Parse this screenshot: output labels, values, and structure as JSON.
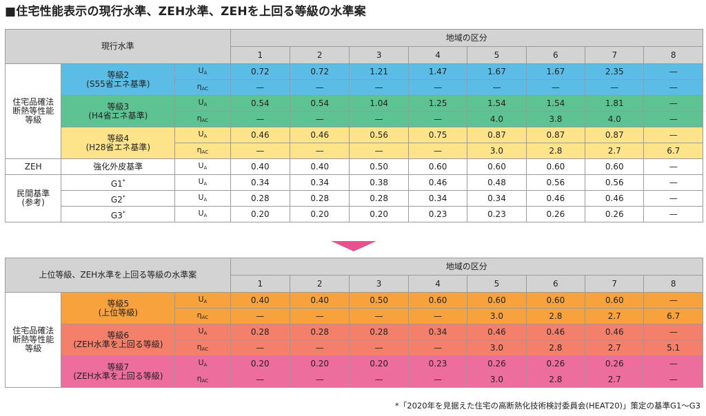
{
  "title": "■住宅性能表示の現行水準、ZEH水準、ZEHを上回る等級の水準案",
  "table1": {
    "corner": "現行水準",
    "region_header": "地域の区分",
    "regions": [
      "1",
      "2",
      "3",
      "4",
      "5",
      "6",
      "7",
      "8"
    ],
    "groups": [
      {
        "label": "住宅品確法\n断熱等性能\n等級",
        "levels": [
          {
            "name": "等級2\n(S55省エネ基準)",
            "color": "#5bbce6",
            "rows": [
              {
                "sym": "U",
                "sub": "A",
                "vals": [
                  "0.72",
                  "0.72",
                  "1.21",
                  "1.47",
                  "1.67",
                  "1.67",
                  "2.35",
                  "—"
                ]
              },
              {
                "sym": "η",
                "sub": "AC",
                "vals": [
                  "—",
                  "—",
                  "—",
                  "—",
                  "—",
                  "—",
                  "—",
                  "—"
                ]
              }
            ]
          },
          {
            "name": "等級3\n(H4省エネ基準)",
            "color": "#5ec392",
            "rows": [
              {
                "sym": "U",
                "sub": "A",
                "vals": [
                  "0.54",
                  "0.54",
                  "1.04",
                  "1.25",
                  "1.54",
                  "1.54",
                  "1.81",
                  "—"
                ]
              },
              {
                "sym": "η",
                "sub": "AC",
                "vals": [
                  "—",
                  "—",
                  "—",
                  "—",
                  "4.0",
                  "3.8",
                  "4.0",
                  "—"
                ]
              }
            ]
          },
          {
            "name": "等級4\n(H28省エネ基準)",
            "color": "#fde48a",
            "rows": [
              {
                "sym": "U",
                "sub": "A",
                "vals": [
                  "0.46",
                  "0.46",
                  "0.56",
                  "0.75",
                  "0.87",
                  "0.87",
                  "0.87",
                  "—"
                ]
              },
              {
                "sym": "η",
                "sub": "AC",
                "vals": [
                  "—",
                  "—",
                  "—",
                  "—",
                  "3.0",
                  "2.8",
                  "2.7",
                  "6.7"
                ]
              }
            ]
          }
        ]
      },
      {
        "label": "ZEH",
        "levels": [
          {
            "name": "強化外皮基準",
            "color": "#ffffff",
            "rows": [
              {
                "sym": "U",
                "sub": "A",
                "vals": [
                  "0.40",
                  "0.40",
                  "0.50",
                  "0.60",
                  "0.60",
                  "0.60",
                  "0.60",
                  "—"
                ]
              }
            ]
          }
        ]
      },
      {
        "label": "民間基準\n(参考)",
        "levels": [
          {
            "name": "G1*",
            "color": "#ffffff",
            "rows": [
              {
                "sym": "U",
                "sub": "A",
                "vals": [
                  "0.34",
                  "0.34",
                  "0.38",
                  "0.46",
                  "0.48",
                  "0.56",
                  "0.56",
                  "—"
                ]
              }
            ]
          },
          {
            "name": "G2*",
            "color": "#ffffff",
            "rows": [
              {
                "sym": "U",
                "sub": "A",
                "vals": [
                  "0.28",
                  "0.28",
                  "0.28",
                  "0.34",
                  "0.34",
                  "0.46",
                  "0.46",
                  "—"
                ]
              }
            ]
          },
          {
            "name": "G3*",
            "color": "#ffffff",
            "rows": [
              {
                "sym": "U",
                "sub": "A",
                "vals": [
                  "0.20",
                  "0.20",
                  "0.20",
                  "0.23",
                  "0.23",
                  "0.26",
                  "0.26",
                  "—"
                ]
              }
            ]
          }
        ]
      }
    ]
  },
  "table2": {
    "corner": "上位等級、ZEH水準を上回る等級の水準案",
    "region_header": "地域の区分",
    "regions": [
      "1",
      "2",
      "3",
      "4",
      "5",
      "6",
      "7",
      "8"
    ],
    "groups": [
      {
        "label": "住宅品確法\n断熱等性能\n等級",
        "levels": [
          {
            "name": "等級5\n(上位等級)",
            "color": "#f7a23c",
            "rows": [
              {
                "sym": "U",
                "sub": "A",
                "vals": [
                  "0.40",
                  "0.40",
                  "0.50",
                  "0.60",
                  "0.60",
                  "0.60",
                  "0.60",
                  "—"
                ]
              },
              {
                "sym": "η",
                "sub": "AC",
                "vals": [
                  "—",
                  "—",
                  "—",
                  "—",
                  "3.0",
                  "2.8",
                  "2.7",
                  "6.7"
                ]
              }
            ]
          },
          {
            "name": "等級6\n(ZEH水準を上回る等級)",
            "color": "#f47f6a",
            "rows": [
              {
                "sym": "U",
                "sub": "A",
                "vals": [
                  "0.28",
                  "0.28",
                  "0.28",
                  "0.34",
                  "0.46",
                  "0.46",
                  "0.46",
                  "—"
                ]
              },
              {
                "sym": "η",
                "sub": "AC",
                "vals": [
                  "—",
                  "—",
                  "—",
                  "—",
                  "3.0",
                  "2.8",
                  "2.7",
                  "5.1"
                ]
              }
            ]
          },
          {
            "name": "等級7\n(ZEH水準を上回る等級)",
            "color": "#ed6d9c",
            "rows": [
              {
                "sym": "U",
                "sub": "A",
                "vals": [
                  "0.20",
                  "0.20",
                  "0.20",
                  "0.23",
                  "0.26",
                  "0.26",
                  "0.26",
                  "—"
                ]
              },
              {
                "sym": "η",
                "sub": "AC",
                "vals": [
                  "—",
                  "—",
                  "—",
                  "—",
                  "3.0",
                  "2.8",
                  "2.7",
                  "—"
                ]
              }
            ]
          }
        ]
      }
    ]
  },
  "footnote": "*「2020年を見据えた住宅の高断熱化技術検討委員会(HEAT20)」策定の基準G1～G3"
}
